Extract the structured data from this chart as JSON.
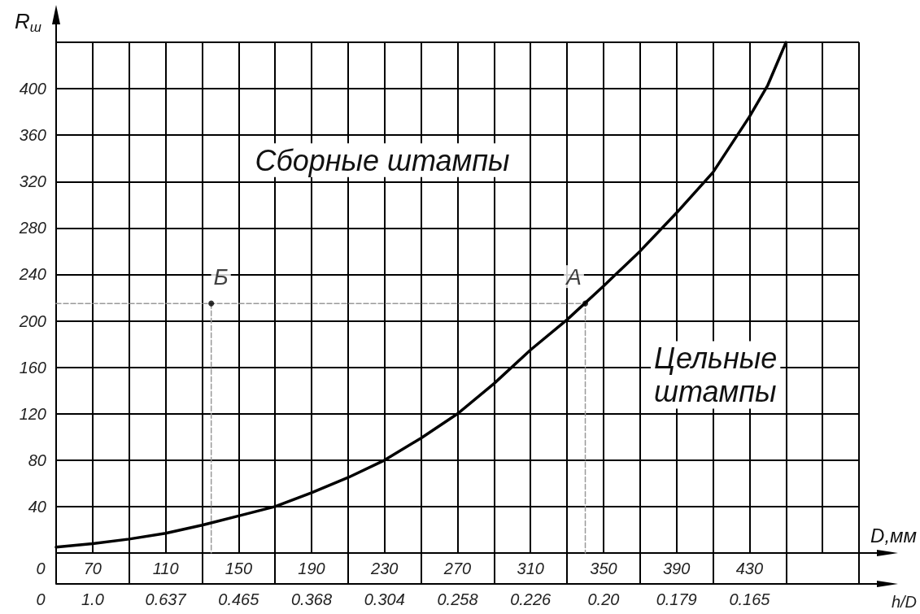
{
  "chart_data": [
    {
      "type": "line",
      "ylabel": "R$_{ш}$",
      "xlabel": "D,мм",
      "xlim": [
        50,
        490
      ],
      "xticks": [
        {
          "value": 50,
          "label": null
        },
        70,
        {
          "value": 90,
          "label": null
        },
        110,
        {
          "value": 130,
          "label": null
        },
        150,
        {
          "value": 170,
          "label": null
        },
        190,
        {
          "value": 210,
          "label": null
        },
        230,
        {
          "value": 250,
          "label": null
        },
        270,
        {
          "value": 290,
          "label": null
        },
        310,
        {
          "value": 330,
          "label": null
        },
        350,
        {
          "value": 370,
          "label": null
        },
        390,
        {
          "value": 410,
          "label": null
        },
        430,
        {
          "value": 450,
          "label": null
        },
        {
          "value": 470,
          "label": null
        },
        {
          "value": 490,
          "label": null
        }
      ],
      "ylim": [
        0,
        440
      ],
      "yticks": [
        {
          "value": 0,
          "label": null
        },
        40,
        80,
        120,
        160,
        200,
        240,
        280,
        320,
        360,
        400,
        {
          "value": 440,
          "label": null
        }
      ],
      "grid": true,
      "series": [
        {
          "color": "#000000",
          "marker": "none",
          "line_style": "solid",
          "x": [
            50,
            70,
            90,
            110,
            130,
            150,
            170,
            190,
            210,
            230,
            250,
            270,
            290,
            310,
            330,
            350,
            370,
            390,
            410,
            430,
            440,
            450
          ],
          "values": [
            5,
            8,
            12,
            17,
            24,
            32,
            40,
            52,
            65,
            80,
            99,
            120,
            146,
            175,
            201,
            230,
            260,
            293,
            328,
            376,
            403,
            440
          ]
        },
        {
          "type": "line",
          "color": "#999999",
          "marker": "none",
          "line_style": "dashed",
          "x": [
            50,
            340,
            340
          ],
          "values": [
            215,
            215,
            0
          ]
        },
        {
          "type": "line",
          "color": "#999999",
          "marker": "none",
          "line_style": "dashed",
          "x": [
            135,
            135
          ],
          "values": [
            215,
            0
          ]
        },
        {
          "type": "scatter",
          "color": "#000000",
          "marker": "circle",
          "x": [
            135,
            340
          ],
          "values": [
            215,
            215
          ]
        }
      ],
      "annotations": [
        {
          "text": "Б",
          "x": 135,
          "y": 215
        },
        {
          "text": "А",
          "x": 340,
          "y": 215
        },
        "Сборные штампы",
        "Цельные штампы"
      ]
    },
    {
      "type": "other",
      "xlabel": "h/D",
      "annotations": [
        "0",
        "0",
        "1.0",
        "0.637",
        "0.465",
        "0.368",
        "0.304",
        "0.258",
        "0.226",
        "0.20",
        "0.179",
        "0.165"
      ]
    }
  ]
}
